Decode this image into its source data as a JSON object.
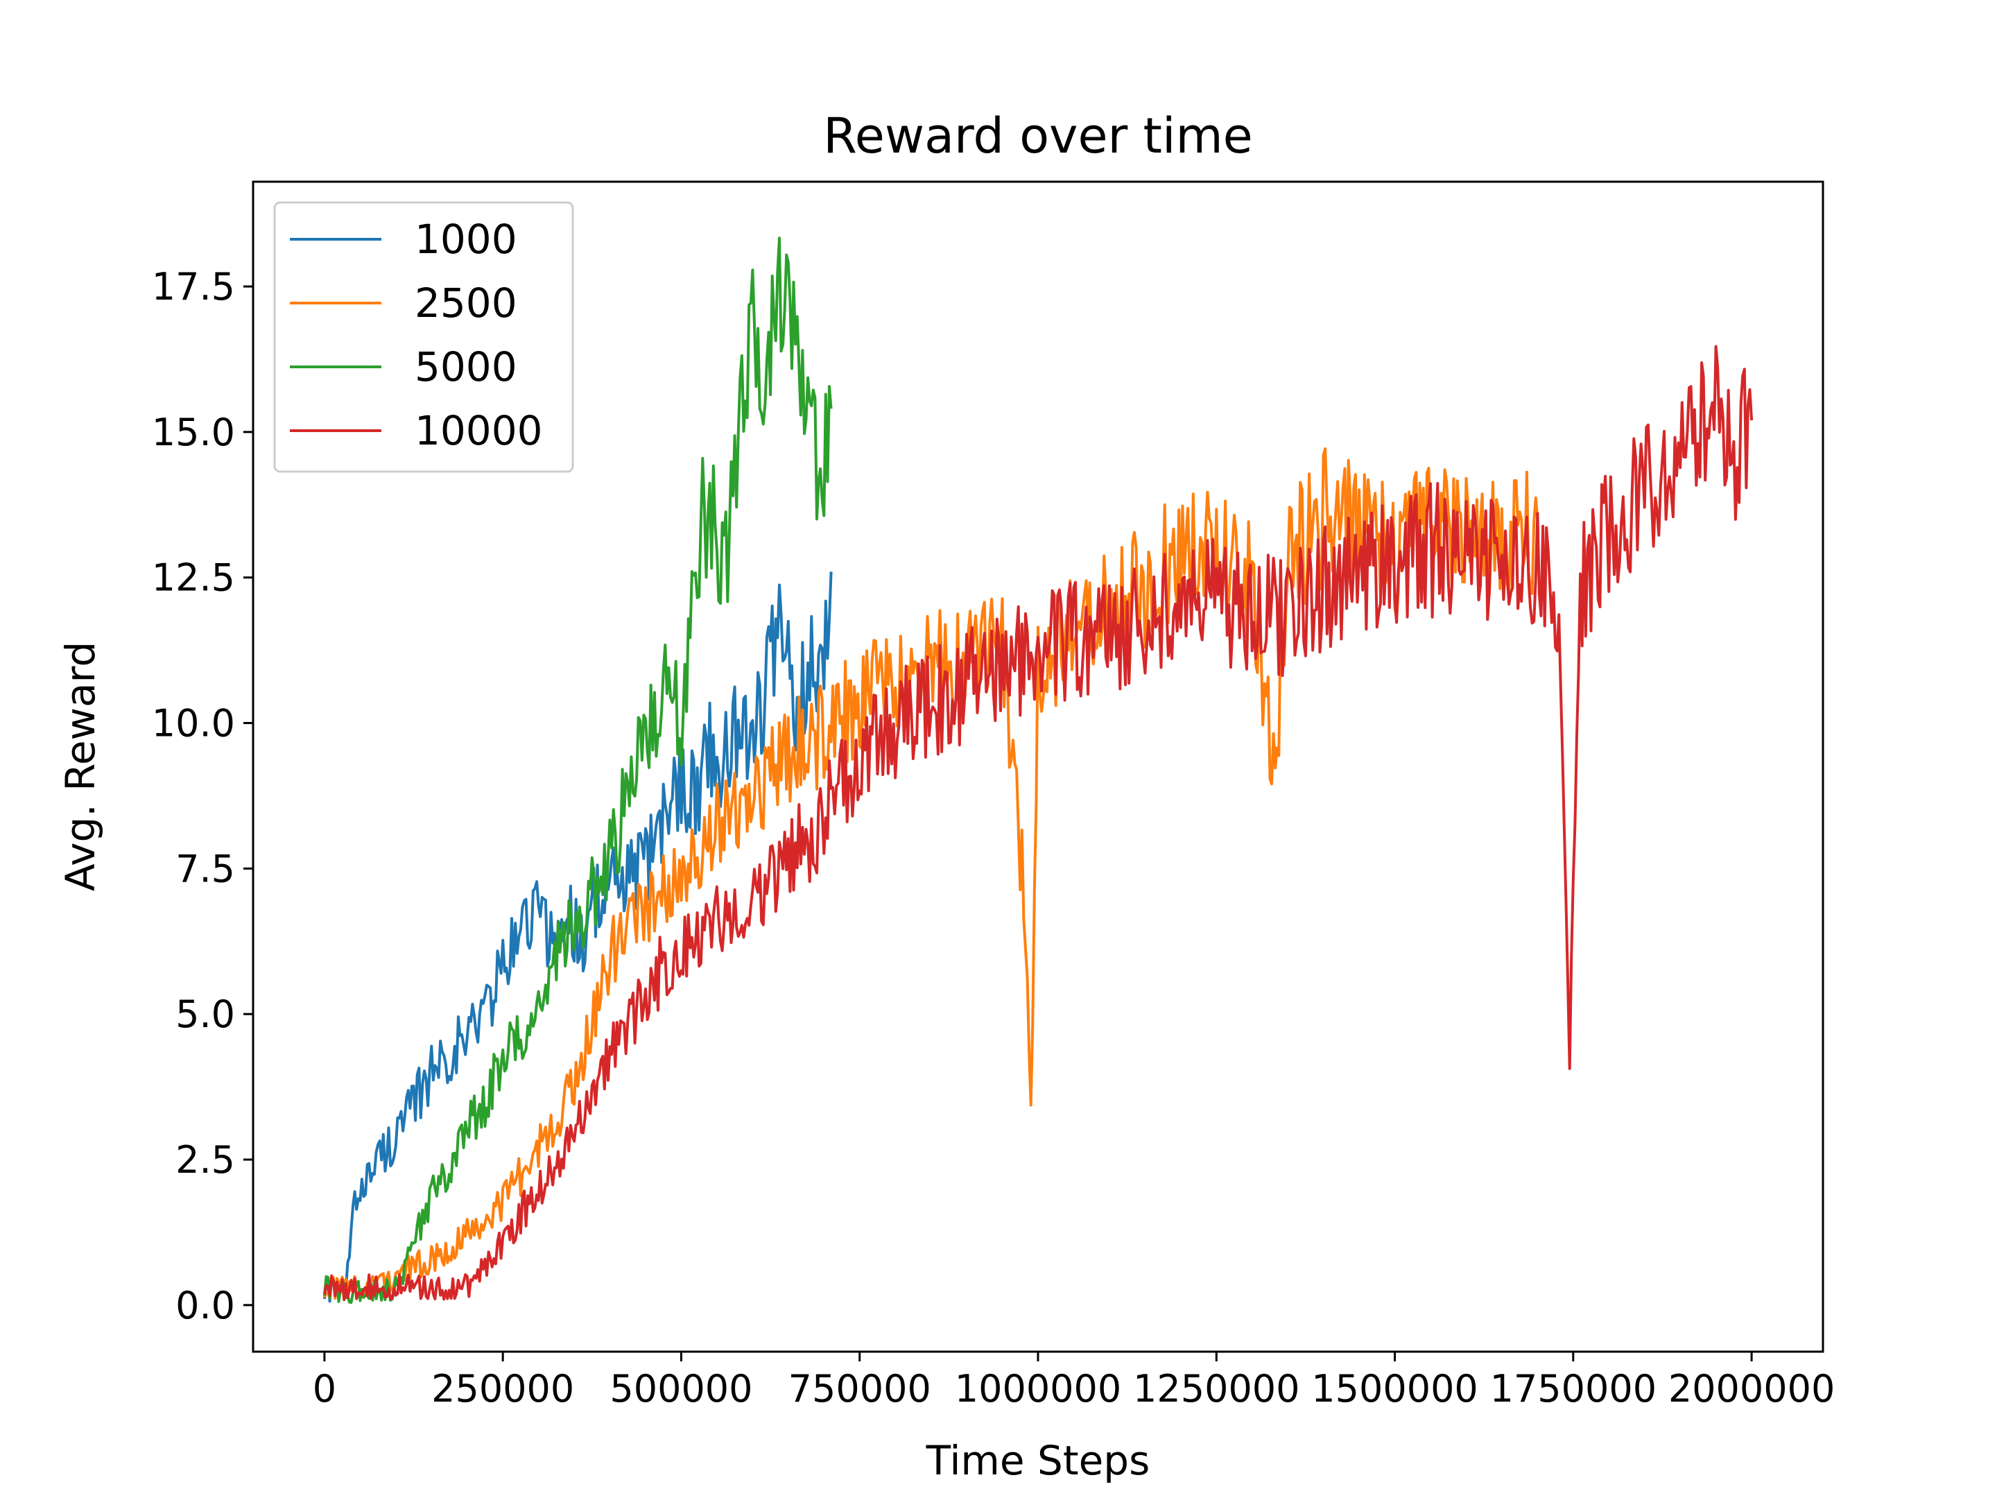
{
  "chart_data": {
    "type": "line",
    "title": "Reward over time",
    "xlabel": "Time Steps",
    "ylabel": "Avg. Reward",
    "xlim": [
      -100000,
      2100000
    ],
    "ylim": [
      -0.8,
      19.3
    ],
    "xticks": [
      0,
      250000,
      500000,
      750000,
      1000000,
      1250000,
      1500000,
      1750000,
      2000000
    ],
    "xtick_labels": [
      "0",
      "250000",
      "500000",
      "750000",
      "1000000",
      "1250000",
      "1500000",
      "1750000",
      "2000000"
    ],
    "yticks": [
      0.0,
      2.5,
      5.0,
      7.5,
      10.0,
      12.5,
      15.0,
      17.5
    ],
    "ytick_labels": [
      "0.0",
      "2.5",
      "5.0",
      "7.5",
      "10.0",
      "12.5",
      "15.0",
      "17.5"
    ],
    "grid": false,
    "legend_position": "top-left",
    "series": [
      {
        "name": "1000",
        "color": "#1f77b4",
        "x": [
          0,
          20000,
          30000,
          40000,
          50000,
          60000,
          80000,
          100000,
          120000,
          140000,
          160000,
          180000,
          200000,
          220000,
          240000,
          260000,
          280000,
          300000,
          320000,
          340000,
          360000,
          380000,
          400000,
          420000,
          440000,
          460000,
          480000,
          500000,
          520000,
          540000,
          560000,
          580000,
          600000,
          620000,
          640000,
          660000,
          680000,
          700000,
          710000
        ],
        "values": [
          0.3,
          0.2,
          0.3,
          1.5,
          2.1,
          2.2,
          2.6,
          2.9,
          3.3,
          3.8,
          4.2,
          4.4,
          4.6,
          5.0,
          5.5,
          6.0,
          6.6,
          6.8,
          6.2,
          6.7,
          6.3,
          7.0,
          7.1,
          7.3,
          7.4,
          7.8,
          8.4,
          9.1,
          8.8,
          9.6,
          9.3,
          10.0,
          9.8,
          10.8,
          11.5,
          10.2,
          10.9,
          11.6,
          12.6
        ]
      },
      {
        "name": "2500",
        "color": "#ff7f0e",
        "x": [
          0,
          50000,
          100000,
          150000,
          200000,
          250000,
          300000,
          350000,
          400000,
          450000,
          500000,
          550000,
          600000,
          650000,
          700000,
          750000,
          800000,
          850000,
          900000,
          950000,
          980000,
          990000,
          1000000,
          1050000,
          1100000,
          1150000,
          1200000,
          1250000,
          1300000,
          1330000,
          1350000,
          1400000,
          1450000,
          1500000,
          1550000,
          1600000,
          1650000,
          1700000
        ],
        "values": [
          0.3,
          0.3,
          0.5,
          0.8,
          1.2,
          1.8,
          2.7,
          3.8,
          6.0,
          6.8,
          7.6,
          8.2,
          8.9,
          9.4,
          9.9,
          10.4,
          10.6,
          10.9,
          11.0,
          11.3,
          7.2,
          3.2,
          11.0,
          11.5,
          12.0,
          12.3,
          12.9,
          12.8,
          12.6,
          9.0,
          12.7,
          13.6,
          13.3,
          12.9,
          13.4,
          13.1,
          13.0,
          13.5
        ]
      },
      {
        "name": "5000",
        "color": "#2ca02c",
        "x": [
          0,
          50000,
          100000,
          120000,
          140000,
          160000,
          180000,
          200000,
          220000,
          240000,
          260000,
          280000,
          300000,
          320000,
          340000,
          360000,
          380000,
          400000,
          420000,
          440000,
          460000,
          480000,
          500000,
          520000,
          540000,
          560000,
          580000,
          600000,
          620000,
          640000,
          660000,
          680000,
          700000,
          710000
        ],
        "values": [
          0.3,
          0.2,
          0.3,
          0.8,
          1.6,
          2.1,
          2.5,
          3.0,
          3.4,
          3.9,
          4.4,
          4.6,
          5.2,
          5.8,
          6.3,
          6.7,
          7.1,
          7.6,
          8.5,
          9.4,
          10.2,
          10.4,
          10.0,
          13.1,
          13.6,
          12.6,
          14.8,
          16.8,
          16.2,
          17.6,
          16.6,
          14.9,
          14.6,
          15.4
        ]
      },
      {
        "name": "10000",
        "color": "#d62728",
        "x": [
          0,
          50000,
          100000,
          150000,
          200000,
          250000,
          300000,
          350000,
          400000,
          450000,
          500000,
          550000,
          600000,
          650000,
          700000,
          750000,
          800000,
          850000,
          900000,
          950000,
          1000000,
          1050000,
          1100000,
          1150000,
          1200000,
          1250000,
          1300000,
          1350000,
          1400000,
          1450000,
          1500000,
          1550000,
          1600000,
          1650000,
          1700000,
          1730000,
          1745000,
          1760000,
          1800000,
          1850000,
          1900000,
          1950000,
          1980000,
          2000000
        ],
        "values": [
          0.3,
          0.3,
          0.3,
          0.3,
          0.3,
          1.1,
          2.0,
          3.0,
          4.3,
          5.4,
          6.2,
          6.6,
          7.1,
          7.6,
          8.4,
          9.4,
          10.0,
          10.3,
          10.6,
          10.9,
          11.2,
          11.5,
          11.6,
          11.7,
          12.0,
          12.1,
          12.0,
          11.8,
          12.4,
          12.6,
          12.8,
          13.0,
          12.8,
          12.7,
          12.9,
          12.0,
          4.3,
          12.3,
          13.4,
          14.0,
          14.9,
          15.3,
          14.5,
          15.2
        ]
      }
    ]
  }
}
